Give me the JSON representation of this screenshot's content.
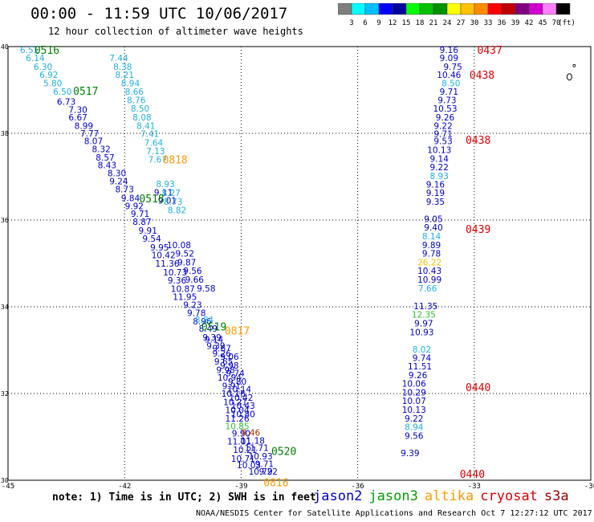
{
  "title": "00:00 - 11:59 UTC 10/06/2017",
  "subtitle": "12 hour collection of altimeter wave heights",
  "colorbar": {
    "labels": [
      "3",
      "6",
      "9",
      "12",
      "15",
      "18",
      "21",
      "24",
      "27",
      "30",
      "33",
      "36",
      "39",
      "42",
      "45",
      "70"
    ],
    "unit": "(ft)",
    "colors": [
      "#7f7f7f",
      "#00ffff",
      "#00bfff",
      "#0000ff",
      "#0000a0",
      "#00ff00",
      "#00c000",
      "#009000",
      "#ffff00",
      "#ffc000",
      "#ff8c00",
      "#ff0000",
      "#c00000",
      "#800080",
      "#d000d0",
      "#ff80ff",
      "#000000"
    ]
  },
  "note": "note: 1) Time is in UTC; 2) SWH is in feet",
  "credit": "NOAA/NESDIS Center for Satellite Applications and Research   Oct  7 12:27:12 UTC 2017",
  "legend": [
    {
      "name": "jason2",
      "color": "#0000cd"
    },
    {
      "name": "jason3",
      "color": "#00a000"
    },
    {
      "name": "altika",
      "color": "#ff9900"
    },
    {
      "name": "cryosat",
      "color": "#dd0000"
    },
    {
      "name": "s3a",
      "color": "#a00000"
    }
  ],
  "chart_data": {
    "type": "scatter",
    "title": "00:00 - 11:59 UTC 10/06/2017",
    "xlim": [
      -45,
      -30
    ],
    "ylim": [
      30,
      40
    ],
    "xticks": [
      -45,
      -42,
      -39,
      -36,
      -33,
      -30
    ],
    "yticks": [
      30,
      32,
      34,
      36,
      38,
      40
    ],
    "xtick_labels": [
      "-45",
      "-42",
      "-39",
      "-36",
      "-33",
      "-30"
    ],
    "ytick_labels": [
      "30",
      "32",
      "34",
      "36",
      "38",
      "40"
    ],
    "grid": true,
    "time_labels": [
      {
        "text": "0516",
        "x": -44.0,
        "y": 39.93,
        "color": "#008000"
      },
      {
        "text": "0517",
        "x": -43.0,
        "y": 38.98,
        "color": "#008000"
      },
      {
        "text": "0518",
        "x": -41.3,
        "y": 36.5,
        "color": "#008000"
      },
      {
        "text": "0519",
        "x": -39.7,
        "y": 33.55,
        "color": "#008000"
      },
      {
        "text": "0520",
        "x": -37.9,
        "y": 30.68,
        "color": "#008000"
      },
      {
        "text": "0818",
        "x": -40.7,
        "y": 37.4,
        "color": "#ff9900"
      },
      {
        "text": "0817",
        "x": -39.1,
        "y": 33.45,
        "color": "#ff9900"
      },
      {
        "text": "0816",
        "x": -38.1,
        "y": 29.95,
        "color": "#ff9900"
      },
      {
        "text": "0437",
        "x": -32.6,
        "y": 39.93,
        "color": "#dd0000"
      },
      {
        "text": "0438",
        "x": -32.8,
        "y": 39.35,
        "color": "#dd0000"
      },
      {
        "text": "0438",
        "x": -32.9,
        "y": 37.85,
        "color": "#dd0000"
      },
      {
        "text": "0439",
        "x": -32.9,
        "y": 35.8,
        "color": "#dd0000"
      },
      {
        "text": "0440",
        "x": -32.9,
        "y": 32.15,
        "color": "#dd0000"
      },
      {
        "text": "0440",
        "x": -33.05,
        "y": 30.15,
        "color": "#dd0000"
      }
    ],
    "series": [
      {
        "name": "jason2",
        "points": [
          {
            "x": -43.5,
            "y": 38.73,
            "v": "6.73"
          },
          {
            "x": -43.2,
            "y": 38.55,
            "v": "7.30"
          },
          {
            "x": -43.2,
            "y": 38.37,
            "v": "6.67"
          },
          {
            "x": -43.05,
            "y": 38.18,
            "v": "8.99"
          },
          {
            "x": -42.9,
            "y": 38.0,
            "v": "7.77"
          },
          {
            "x": -42.8,
            "y": 37.82,
            "v": "8.07"
          },
          {
            "x": -42.6,
            "y": 37.64,
            "v": "8.32"
          },
          {
            "x": -42.5,
            "y": 37.44,
            "v": "8.57"
          },
          {
            "x": -42.45,
            "y": 37.27,
            "v": "8.43"
          },
          {
            "x": -42.2,
            "y": 37.08,
            "v": "8.30"
          },
          {
            "x": -42.15,
            "y": 36.9,
            "v": "9.24"
          },
          {
            "x": -42.0,
            "y": 36.71,
            "v": "8.73"
          },
          {
            "x": -41.85,
            "y": 36.51,
            "v": "9.84"
          },
          {
            "x": -41.75,
            "y": 36.32,
            "v": "9.92"
          },
          {
            "x": -41.6,
            "y": 36.15,
            "v": "9.71"
          },
          {
            "x": -41.55,
            "y": 35.96,
            "v": "8.87"
          },
          {
            "x": -41.4,
            "y": 35.76,
            "v": "9.91"
          },
          {
            "x": -41.3,
            "y": 35.57,
            "v": "9.54"
          },
          {
            "x": -41.1,
            "y": 35.37,
            "v": "9.95"
          },
          {
            "x": -41.0,
            "y": 35.19,
            "v": "10.42"
          },
          {
            "x": -40.9,
            "y": 35.0,
            "v": "11.36"
          },
          {
            "x": -40.7,
            "y": 34.8,
            "v": "10.73"
          },
          {
            "x": -40.65,
            "y": 34.61,
            "v": "9.36"
          },
          {
            "x": -40.5,
            "y": 34.42,
            "v": "10.87"
          },
          {
            "x": -40.45,
            "y": 34.23,
            "v": "11.95"
          },
          {
            "x": -40.25,
            "y": 34.05,
            "v": "9.23"
          },
          {
            "x": -40.15,
            "y": 33.86,
            "v": "9.78"
          },
          {
            "x": -40.0,
            "y": 33.67,
            "v": "8.96"
          },
          {
            "x": -39.85,
            "y": 33.5,
            "v": "8.49"
          },
          {
            "x": -39.75,
            "y": 33.3,
            "v": "9.39"
          },
          {
            "x": -39.65,
            "y": 33.1,
            "v": "9.39"
          },
          {
            "x": -39.5,
            "y": 32.93,
            "v": "9.26"
          },
          {
            "x": -39.45,
            "y": 32.74,
            "v": "9.65"
          },
          {
            "x": -39.4,
            "y": 32.55,
            "v": "9.98"
          },
          {
            "x": -39.3,
            "y": 32.37,
            "v": "10.94"
          },
          {
            "x": -39.25,
            "y": 32.18,
            "v": "9.91"
          },
          {
            "x": -39.2,
            "y": 32.0,
            "v": "10.16"
          },
          {
            "x": -39.15,
            "y": 31.81,
            "v": "10.21"
          },
          {
            "x": -39.1,
            "y": 31.62,
            "v": "10.04"
          },
          {
            "x": -39.1,
            "y": 31.43,
            "v": "11.26"
          },
          {
            "x": -39.0,
            "y": 31.08,
            "v": "9.90"
          },
          {
            "x": -39.05,
            "y": 30.9,
            "v": "11.01"
          },
          {
            "x": -38.9,
            "y": 30.7,
            "v": "10.21"
          },
          {
            "x": -38.95,
            "y": 30.5,
            "v": "10.71"
          },
          {
            "x": -38.8,
            "y": 30.35,
            "v": "10.03"
          },
          {
            "x": -41.0,
            "y": 36.64,
            "v": "9.11"
          },
          {
            "x": -40.9,
            "y": 36.45,
            "v": "9.01"
          },
          {
            "x": -40.6,
            "y": 35.43,
            "v": "10.08"
          },
          {
            "x": -40.45,
            "y": 35.23,
            "v": "9.52"
          },
          {
            "x": -40.4,
            "y": 35.03,
            "v": "9.87"
          },
          {
            "x": -40.25,
            "y": 34.83,
            "v": "9.56"
          },
          {
            "x": -40.2,
            "y": 34.63,
            "v": "9.66"
          },
          {
            "x": -39.9,
            "y": 34.43,
            "v": "9.58"
          },
          {
            "x": -39.7,
            "y": 33.25,
            "v": "9.14"
          },
          {
            "x": -39.5,
            "y": 33.05,
            "v": "9.67"
          },
          {
            "x": -39.3,
            "y": 32.85,
            "v": "9.06"
          },
          {
            "x": -39.3,
            "y": 32.65,
            "v": "9.98"
          },
          {
            "x": -39.15,
            "y": 32.47,
            "v": "9.74"
          },
          {
            "x": -39.1,
            "y": 32.28,
            "v": "9.80"
          },
          {
            "x": -39.05,
            "y": 32.1,
            "v": "10.14"
          },
          {
            "x": -39.0,
            "y": 31.91,
            "v": "10.42"
          },
          {
            "x": -38.95,
            "y": 31.72,
            "v": "10.43"
          },
          {
            "x": -38.95,
            "y": 31.53,
            "v": "10.80"
          },
          {
            "x": -38.7,
            "y": 30.92,
            "v": "11.18"
          },
          {
            "x": -38.6,
            "y": 30.75,
            "v": "11.71"
          },
          {
            "x": -38.5,
            "y": 30.56,
            "v": "10.93"
          },
          {
            "x": -38.4,
            "y": 30.38,
            "v": "9.71"
          },
          {
            "x": -38.3,
            "y": 30.2,
            "v": "9.22"
          },
          {
            "x": -38.5,
            "y": 30.2,
            "v": "10.79"
          },
          {
            "x": -33.65,
            "y": 39.93,
            "v": "9.16"
          },
          {
            "x": -33.65,
            "y": 39.74,
            "v": "9.09"
          },
          {
            "x": -33.55,
            "y": 39.54,
            "v": "9.75"
          },
          {
            "x": -33.65,
            "y": 39.35,
            "v": "10.46"
          },
          {
            "x": -33.65,
            "y": 38.96,
            "v": "9.71"
          },
          {
            "x": -33.7,
            "y": 38.77,
            "v": "9.73"
          },
          {
            "x": -33.75,
            "y": 38.57,
            "v": "10.53"
          },
          {
            "x": -33.75,
            "y": 38.37,
            "v": "9.26"
          },
          {
            "x": -33.8,
            "y": 38.18,
            "v": "9.22"
          },
          {
            "x": -33.8,
            "y": 37.99,
            "v": "9.71"
          },
          {
            "x": -33.8,
            "y": 37.82,
            "v": "9.53"
          },
          {
            "x": -33.9,
            "y": 37.62,
            "v": "10.13"
          },
          {
            "x": -33.9,
            "y": 37.42,
            "v": "9.14"
          },
          {
            "x": -33.9,
            "y": 37.22,
            "v": "9.22"
          },
          {
            "x": -34.0,
            "y": 36.82,
            "v": "9.16"
          },
          {
            "x": -34.0,
            "y": 36.63,
            "v": "9.19"
          },
          {
            "x": -34.0,
            "y": 36.43,
            "v": "9.35"
          },
          {
            "x": -34.05,
            "y": 36.03,
            "v": "9.05"
          },
          {
            "x": -34.05,
            "y": 35.83,
            "v": "9.40"
          },
          {
            "x": -34.1,
            "y": 35.43,
            "v": "9.89"
          },
          {
            "x": -34.1,
            "y": 35.23,
            "v": "9.78"
          },
          {
            "x": -34.15,
            "y": 34.83,
            "v": "10.43"
          },
          {
            "x": -34.15,
            "y": 34.63,
            "v": "10.99"
          },
          {
            "x": -34.25,
            "y": 34.02,
            "v": "11.35"
          },
          {
            "x": -34.3,
            "y": 33.62,
            "v": "9.97"
          },
          {
            "x": -34.35,
            "y": 33.42,
            "v": "10.93"
          },
          {
            "x": -34.35,
            "y": 32.82,
            "v": "9.74"
          },
          {
            "x": -34.4,
            "y": 32.63,
            "v": "11.51"
          },
          {
            "x": -34.45,
            "y": 32.43,
            "v": "9.26"
          },
          {
            "x": -34.55,
            "y": 32.23,
            "v": "10.06"
          },
          {
            "x": -34.55,
            "y": 32.03,
            "v": "10.29"
          },
          {
            "x": -34.55,
            "y": 31.83,
            "v": "10.07"
          },
          {
            "x": -34.55,
            "y": 31.63,
            "v": "10.13"
          },
          {
            "x": -34.55,
            "y": 31.43,
            "v": "9.22"
          },
          {
            "x": -34.55,
            "y": 31.03,
            "v": "9.56"
          },
          {
            "x": -34.65,
            "y": 30.63,
            "v": "9.39"
          }
        ]
      },
      {
        "name": "light",
        "points": [
          {
            "x": -44.45,
            "y": 39.93,
            "v": "6.51"
          },
          {
            "x": -44.3,
            "y": 39.74,
            "v": "6.14"
          },
          {
            "x": -44.1,
            "y": 39.54,
            "v": "6.30"
          },
          {
            "x": -43.95,
            "y": 39.35,
            "v": "6.92"
          },
          {
            "x": -43.85,
            "y": 39.16,
            "v": "5.80"
          },
          {
            "x": -43.6,
            "y": 38.96,
            "v": "6.50"
          },
          {
            "x": -42.15,
            "y": 39.74,
            "v": "7.44"
          },
          {
            "x": -42.05,
            "y": 39.54,
            "v": "8.38"
          },
          {
            "x": -42.0,
            "y": 39.35,
            "v": "8.21"
          },
          {
            "x": -41.85,
            "y": 39.16,
            "v": "8.94"
          },
          {
            "x": -41.75,
            "y": 38.96,
            "v": "8.66"
          },
          {
            "x": -41.7,
            "y": 38.77,
            "v": "8.76"
          },
          {
            "x": -41.6,
            "y": 38.57,
            "v": "8.50"
          },
          {
            "x": -41.55,
            "y": 38.37,
            "v": "8.08"
          },
          {
            "x": -41.45,
            "y": 38.18,
            "v": "8.41"
          },
          {
            "x": -41.35,
            "y": 37.99,
            "v": "7.41"
          },
          {
            "x": -41.25,
            "y": 37.79,
            "v": "7.64"
          },
          {
            "x": -41.2,
            "y": 37.59,
            "v": "7.13"
          },
          {
            "x": -41.15,
            "y": 37.4,
            "v": "7.67"
          },
          {
            "x": -40.95,
            "y": 36.83,
            "v": "8.93"
          },
          {
            "x": -40.8,
            "y": 36.63,
            "v": "8.27"
          },
          {
            "x": -40.75,
            "y": 36.43,
            "v": "8.73"
          },
          {
            "x": -40.65,
            "y": 36.23,
            "v": "8.82"
          },
          {
            "x": -39.95,
            "y": 33.7,
            "v": "8.84"
          },
          {
            "x": -33.6,
            "y": 39.16,
            "v": "8.50"
          },
          {
            "x": -33.9,
            "y": 37.02,
            "v": "8.93"
          },
          {
            "x": -34.1,
            "y": 35.63,
            "v": "8.14"
          },
          {
            "x": -34.2,
            "y": 34.43,
            "v": "7.66"
          },
          {
            "x": -34.35,
            "y": 33.02,
            "v": "8.02"
          },
          {
            "x": -34.55,
            "y": 31.23,
            "v": "8.94"
          }
        ]
      },
      {
        "name": "jason3",
        "points": [
          {
            "x": -39.1,
            "y": 31.25,
            "v": "10.85"
          },
          {
            "x": -34.3,
            "y": 33.82,
            "v": "12.35"
          }
        ]
      },
      {
        "name": "altika",
        "points": [
          {
            "x": -34.15,
            "y": 35.03,
            "v": "26.22"
          }
        ]
      },
      {
        "name": "cryosat",
        "points": [
          {
            "x": -38.75,
            "y": 31.1,
            "v": "9.46"
          }
        ]
      }
    ]
  }
}
